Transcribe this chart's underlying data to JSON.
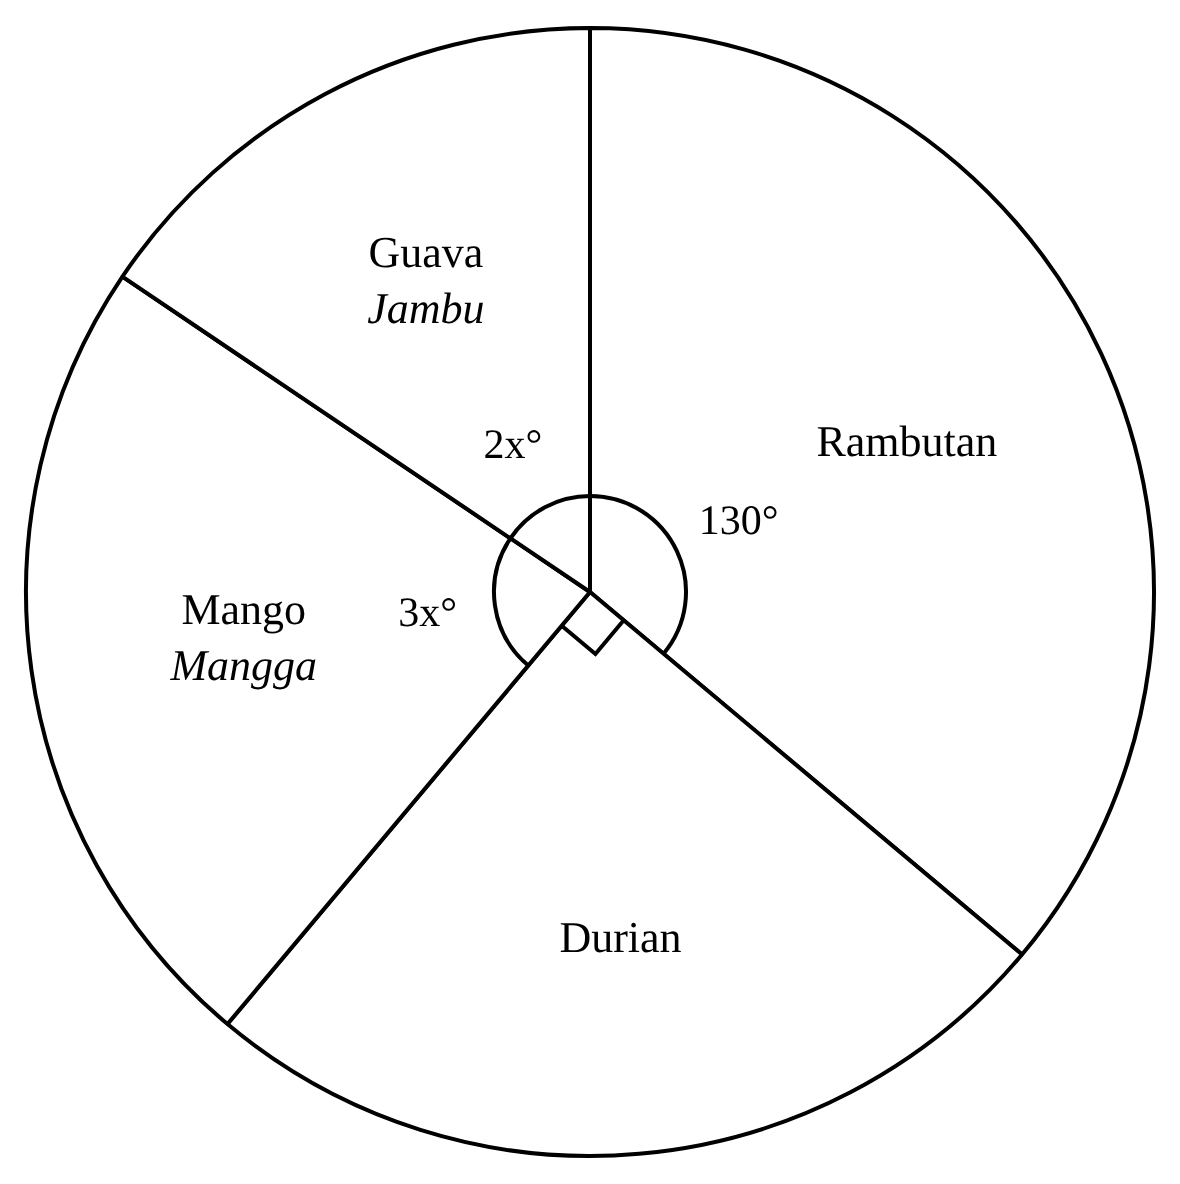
{
  "chart_data": {
    "type": "pie",
    "categories": [
      "Rambutan",
      "Durian",
      "Mango\nMangga",
      "Guava\nJambu"
    ],
    "values": [
      130,
      90,
      84,
      56
    ],
    "colors": [
      "#ffffff",
      "#ffffff",
      "#ffffff",
      "#ffffff"
    ],
    "value_labels": [
      "130°",
      null,
      null,
      null
    ],
    "annotations": [
      "3x°",
      "2x°"
    ],
    "legend": false
  }
}
